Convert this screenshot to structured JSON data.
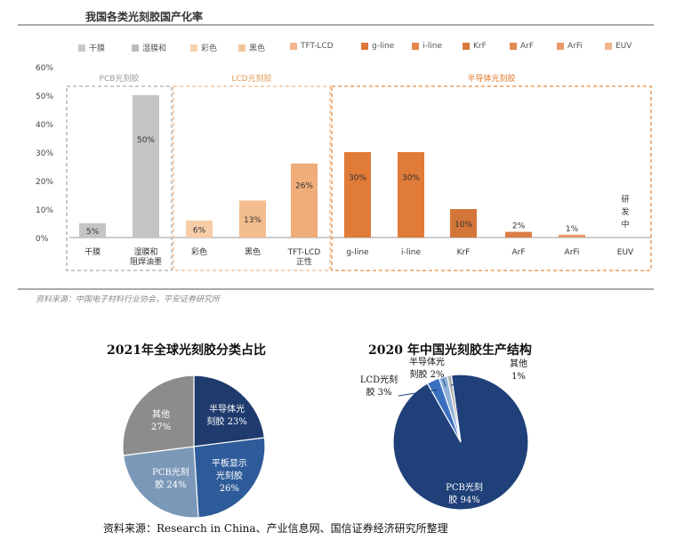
{
  "chart_data": [
    {
      "type": "bar",
      "title": "我国各类光刻胶国产化率",
      "source": "资料来源：中国电子材料行业协会，平安证券研究所",
      "ylim": [
        0,
        60
      ],
      "yticks": [
        "0%",
        "10%",
        "20%",
        "30%",
        "40%",
        "50%",
        "60%"
      ],
      "grid": true,
      "legend_position": "top",
      "groups": [
        {
          "label": "PCB光刻胶",
          "start": 0,
          "end": 1,
          "color": "#aaaaaa",
          "label_color": "#9a9a9a"
        },
        {
          "label": "LCD光刻胶",
          "start": 2,
          "end": 4,
          "color": "#f3b98a",
          "label_color": "#e59c5a"
        },
        {
          "label": "半导体光刻胶",
          "start": 5,
          "end": 10,
          "color": "#e58a3f",
          "label_color": "#e0782a"
        }
      ],
      "categories": [
        "干膜",
        "湿膜和阻焊油墨",
        "彩色",
        "黑色",
        "TFT-LCD正性",
        "g-line",
        "i-line",
        "KrF",
        "ArF",
        "ArFi",
        "EUV"
      ],
      "category_lines": [
        [
          "干膜"
        ],
        [
          "湿膜和",
          "阻焊油墨"
        ],
        [
          "彩色"
        ],
        [
          "黑色"
        ],
        [
          "TFT-LCD",
          "正性"
        ],
        [
          "g-line"
        ],
        [
          "i-line"
        ],
        [
          "KrF"
        ],
        [
          "ArF"
        ],
        [
          "ArFi"
        ],
        [
          "EUV"
        ]
      ],
      "values": [
        5,
        50,
        6,
        13,
        26,
        30,
        30,
        10,
        2,
        1,
        null
      ],
      "data_labels": [
        "5%",
        "50%",
        "6%",
        "13%",
        "26%",
        "30%",
        "30%",
        "10%",
        "2%",
        "1%",
        "研发中"
      ],
      "colors": [
        "#c4c4c4",
        "#c4c4c4",
        "#f7cda8",
        "#f4bd8e",
        "#f0ad7a",
        "#e07b38",
        "#e07b38",
        "#d4753a",
        "#d97f45",
        "#e89a68",
        "#ffffff"
      ],
      "legend": [
        "干膜",
        "湿膜和",
        "彩色",
        "黑色",
        "TFT-LCD",
        "g-line",
        "i-line",
        "KrF",
        "ArF",
        "ArFi",
        "EUV"
      ],
      "legend_colors": [
        "#c8c8c8",
        "#bcbcbc",
        "#f7d2b0",
        "#f4c49c",
        "#f0b58a",
        "#e0783a",
        "#e4854a",
        "#d87a40",
        "#e08a50",
        "#e89a68",
        "#f0b58a"
      ]
    },
    {
      "type": "pie",
      "title": "2021年全球光刻胶分类占比",
      "slices": [
        {
          "name": "半导体光刻胶",
          "lines": [
            "半导体光",
            "刻胶 23%"
          ],
          "value": 23,
          "color": "#1f3b6e",
          "text_color": "#ffffff"
        },
        {
          "name": "平板显示光刻胶",
          "lines": [
            "平板显示",
            "光刻胶",
            "26%"
          ],
          "value": 26,
          "color": "#2e5b99",
          "text_color": "#ffffff"
        },
        {
          "name": "PCB光刻胶",
          "lines": [
            "PCB光刻",
            "胶 24%"
          ],
          "value": 24,
          "color": "#7b98b8",
          "text_color": "#ffffff"
        },
        {
          "name": "其他",
          "lines": [
            "其他",
            "27%"
          ],
          "value": 27,
          "color": "#8c8c8c",
          "text_color": "#ffffff"
        }
      ]
    },
    {
      "type": "pie",
      "title": "2020 年中国光刻胶生产结构",
      "slices": [
        {
          "name": "PCB光刻胶",
          "lines": [
            "PCB光刻",
            "胶 94%"
          ],
          "value": 94,
          "color": "#1f4079",
          "text_color": "#ffffff"
        },
        {
          "name": "LCD光刻胶",
          "lines": [
            "LCD光刻",
            "胶 3%"
          ],
          "value": 3,
          "color": "#3a6fbf",
          "text_color": "#111111"
        },
        {
          "name": "半导体光刻胶",
          "lines": [
            "半导体光",
            "刻胶 2%"
          ],
          "value": 2,
          "color": "#8fb0d8",
          "text_color": "#111111"
        },
        {
          "name": "其他",
          "lines": [
            "其他",
            "1%"
          ],
          "value": 1,
          "color": "#b0b0b0",
          "text_color": "#111111"
        }
      ]
    }
  ],
  "source_bottom": "资料来源：Research in China、产业信息网、国信证券经济研究所整理"
}
